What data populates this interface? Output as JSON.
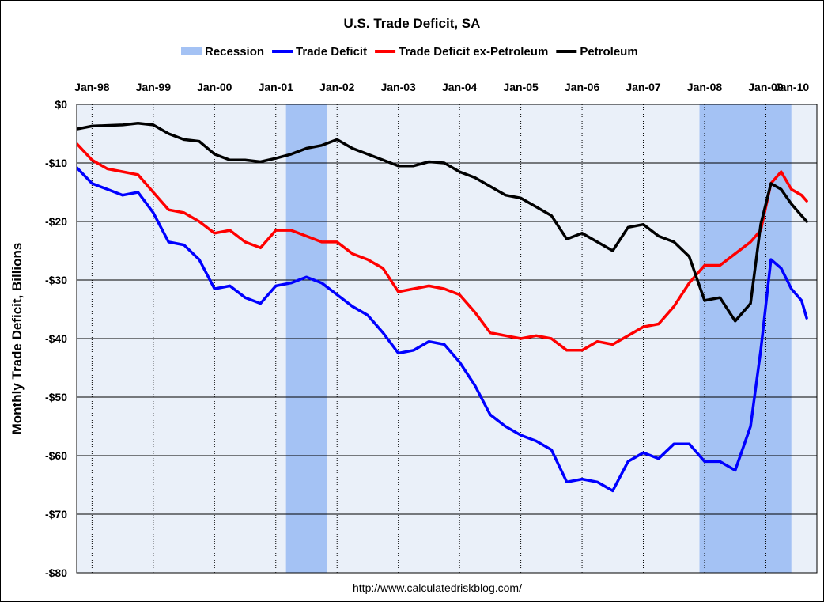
{
  "chart_data": {
    "type": "line",
    "title": "U.S. Trade Deficit, SA",
    "ylabel": "Monthly Trade Deficit, Billions",
    "xlabel": "",
    "source": "http://www.calculatedriskblog.com/",
    "x_ticks": [
      "Jan-98",
      "Jan-99",
      "Jan-00",
      "Jan-01",
      "Jan-02",
      "Jan-03",
      "Jan-04",
      "Jan-05",
      "Jan-06",
      "Jan-07",
      "Jan-08",
      "Jan-09",
      "Jan-10"
    ],
    "y_ticks": [
      "$0",
      "-$10",
      "-$20",
      "-$30",
      "-$40",
      "-$50",
      "-$60",
      "-$70",
      "-$80"
    ],
    "ylim": [
      -80,
      0
    ],
    "xlim": [
      "1997-10",
      "2009-11"
    ],
    "grid": true,
    "legend_position": "top",
    "legend": [
      "Recession",
      "Trade Deficit",
      "Trade Deficit ex-Petroleum",
      "Petroleum"
    ],
    "recessions": [
      {
        "name": "Recession",
        "start": "2001-03",
        "end": "2001-11",
        "color": "#a4c2f4"
      },
      {
        "name": "Recession",
        "start": "2007-12",
        "end": "2009-06",
        "color": "#a4c2f4"
      }
    ],
    "series": [
      {
        "name": "Trade Deficit",
        "color": "#0000ff",
        "points": [
          [
            "1997-10",
            -10.8
          ],
          [
            "1998-01",
            -13.5
          ],
          [
            "1998-04",
            -14.5
          ],
          [
            "1998-07",
            -15.5
          ],
          [
            "1998-10",
            -15.0
          ],
          [
            "1999-01",
            -18.5
          ],
          [
            "1999-04",
            -23.5
          ],
          [
            "1999-07",
            -24.0
          ],
          [
            "1999-10",
            -26.5
          ],
          [
            "2000-01",
            -31.5
          ],
          [
            "2000-04",
            -31.0
          ],
          [
            "2000-07",
            -33.0
          ],
          [
            "2000-10",
            -34.0
          ],
          [
            "2001-01",
            -31.0
          ],
          [
            "2001-04",
            -30.5
          ],
          [
            "2001-07",
            -29.5
          ],
          [
            "2001-10",
            -30.5
          ],
          [
            "2002-01",
            -32.5
          ],
          [
            "2002-04",
            -34.5
          ],
          [
            "2002-07",
            -36.0
          ],
          [
            "2002-10",
            -39.0
          ],
          [
            "2003-01",
            -42.5
          ],
          [
            "2003-04",
            -42.0
          ],
          [
            "2003-07",
            -40.5
          ],
          [
            "2003-10",
            -41.0
          ],
          [
            "2004-01",
            -44.0
          ],
          [
            "2004-04",
            -48.0
          ],
          [
            "2004-07",
            -53.0
          ],
          [
            "2004-10",
            -55.0
          ],
          [
            "2005-01",
            -56.5
          ],
          [
            "2005-04",
            -57.5
          ],
          [
            "2005-07",
            -59.0
          ],
          [
            "2005-10",
            -64.5
          ],
          [
            "2006-01",
            -64.0
          ],
          [
            "2006-04",
            -64.5
          ],
          [
            "2006-07",
            -66.0
          ],
          [
            "2006-10",
            -61.0
          ],
          [
            "2007-01",
            -59.5
          ],
          [
            "2007-04",
            -60.5
          ],
          [
            "2007-07",
            -58.0
          ],
          [
            "2007-10",
            -58.0
          ],
          [
            "2008-01",
            -61.0
          ],
          [
            "2008-04",
            -61.0
          ],
          [
            "2008-07",
            -62.5
          ],
          [
            "2008-10",
            -55.0
          ],
          [
            "2008-12",
            -42.0
          ],
          [
            "2009-02",
            -26.5
          ],
          [
            "2009-04",
            -28.0
          ],
          [
            "2009-06",
            -31.5
          ],
          [
            "2009-08",
            -33.5
          ],
          [
            "2009-09",
            -36.5
          ]
        ]
      },
      {
        "name": "Trade Deficit ex-Petroleum",
        "color": "#ff0000",
        "points": [
          [
            "1997-10",
            -6.7
          ],
          [
            "1998-01",
            -9.5
          ],
          [
            "1998-04",
            -11.0
          ],
          [
            "1998-07",
            -11.5
          ],
          [
            "1998-10",
            -12.0
          ],
          [
            "1999-01",
            -15.0
          ],
          [
            "1999-04",
            -18.0
          ],
          [
            "1999-07",
            -18.5
          ],
          [
            "1999-10",
            -20.0
          ],
          [
            "2000-01",
            -22.0
          ],
          [
            "2000-04",
            -21.5
          ],
          [
            "2000-07",
            -23.5
          ],
          [
            "2000-10",
            -24.5
          ],
          [
            "2001-01",
            -21.5
          ],
          [
            "2001-04",
            -21.5
          ],
          [
            "2001-07",
            -22.5
          ],
          [
            "2001-10",
            -23.5
          ],
          [
            "2002-01",
            -23.5
          ],
          [
            "2002-04",
            -25.5
          ],
          [
            "2002-07",
            -26.5
          ],
          [
            "2002-10",
            -28.0
          ],
          [
            "2003-01",
            -32.0
          ],
          [
            "2003-04",
            -31.5
          ],
          [
            "2003-07",
            -31.0
          ],
          [
            "2003-10",
            -31.5
          ],
          [
            "2004-01",
            -32.5
          ],
          [
            "2004-04",
            -35.5
          ],
          [
            "2004-07",
            -39.0
          ],
          [
            "2004-10",
            -39.5
          ],
          [
            "2005-01",
            -40.0
          ],
          [
            "2005-04",
            -39.5
          ],
          [
            "2005-07",
            -40.0
          ],
          [
            "2005-10",
            -42.0
          ],
          [
            "2006-01",
            -42.0
          ],
          [
            "2006-04",
            -40.5
          ],
          [
            "2006-07",
            -41.0
          ],
          [
            "2006-10",
            -39.5
          ],
          [
            "2007-01",
            -38.0
          ],
          [
            "2007-04",
            -37.5
          ],
          [
            "2007-07",
            -34.5
          ],
          [
            "2007-10",
            -30.5
          ],
          [
            "2008-01",
            -27.5
          ],
          [
            "2008-04",
            -27.5
          ],
          [
            "2008-07",
            -25.5
          ],
          [
            "2008-10",
            -23.5
          ],
          [
            "2008-12",
            -21.5
          ],
          [
            "2009-02",
            -13.5
          ],
          [
            "2009-04",
            -11.5
          ],
          [
            "2009-06",
            -14.5
          ],
          [
            "2009-08",
            -15.5
          ],
          [
            "2009-09",
            -16.5
          ]
        ]
      },
      {
        "name": "Petroleum",
        "color": "#000000",
        "points": [
          [
            "1997-10",
            -4.2
          ],
          [
            "1998-01",
            -3.7
          ],
          [
            "1998-04",
            -3.6
          ],
          [
            "1998-07",
            -3.5
          ],
          [
            "1998-10",
            -3.2
          ],
          [
            "1999-01",
            -3.5
          ],
          [
            "1999-04",
            -5.0
          ],
          [
            "1999-07",
            -6.0
          ],
          [
            "1999-10",
            -6.3
          ],
          [
            "2000-01",
            -8.5
          ],
          [
            "2000-04",
            -9.5
          ],
          [
            "2000-07",
            -9.5
          ],
          [
            "2000-10",
            -9.8
          ],
          [
            "2001-01",
            -9.2
          ],
          [
            "2001-04",
            -8.5
          ],
          [
            "2001-07",
            -7.5
          ],
          [
            "2001-10",
            -7.0
          ],
          [
            "2002-01",
            -6.0
          ],
          [
            "2002-04",
            -7.5
          ],
          [
            "2002-07",
            -8.5
          ],
          [
            "2002-10",
            -9.5
          ],
          [
            "2003-01",
            -10.5
          ],
          [
            "2003-04",
            -10.5
          ],
          [
            "2003-07",
            -9.8
          ],
          [
            "2003-10",
            -10.0
          ],
          [
            "2004-01",
            -11.5
          ],
          [
            "2004-04",
            -12.5
          ],
          [
            "2004-07",
            -14.0
          ],
          [
            "2004-10",
            -15.5
          ],
          [
            "2005-01",
            -16.0
          ],
          [
            "2005-04",
            -17.5
          ],
          [
            "2005-07",
            -19.0
          ],
          [
            "2005-10",
            -23.0
          ],
          [
            "2006-01",
            -22.0
          ],
          [
            "2006-04",
            -23.5
          ],
          [
            "2006-07",
            -25.0
          ],
          [
            "2006-10",
            -21.0
          ],
          [
            "2007-01",
            -20.5
          ],
          [
            "2007-04",
            -22.5
          ],
          [
            "2007-07",
            -23.5
          ],
          [
            "2007-10",
            -26.0
          ],
          [
            "2008-01",
            -33.5
          ],
          [
            "2008-04",
            -33.0
          ],
          [
            "2008-07",
            -37.0
          ],
          [
            "2008-10",
            -34.0
          ],
          [
            "2008-12",
            -20.5
          ],
          [
            "2009-02",
            -13.5
          ],
          [
            "2009-04",
            -14.5
          ],
          [
            "2009-06",
            -17.0
          ],
          [
            "2009-08",
            -19.0
          ],
          [
            "2009-09",
            -20.0
          ]
        ]
      }
    ]
  }
}
